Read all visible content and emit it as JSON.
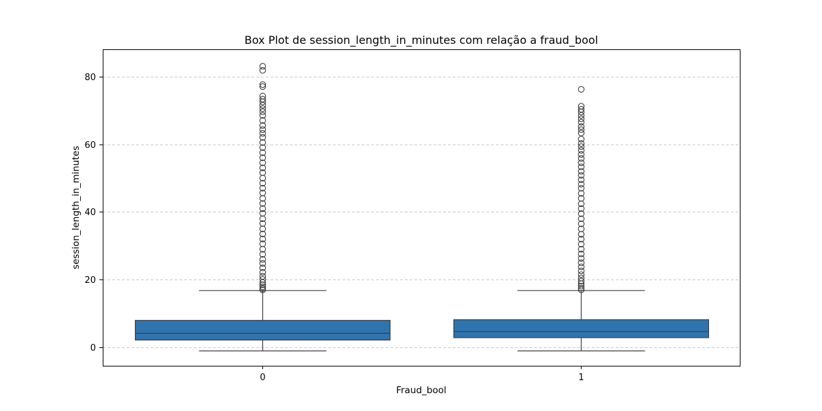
{
  "chart_data": {
    "type": "box",
    "title": "Box Plot de session_length_in_minutes com relação a fraud_bool",
    "xlabel": "Fraud_bool",
    "ylabel": "session_length_in_minutes",
    "categories": [
      "0",
      "1"
    ],
    "ylim": [
      -5.4,
      88
    ],
    "yticks": [
      0,
      20,
      40,
      60,
      80
    ],
    "grid": "y-dashed",
    "colors": {
      "box_fill": "#2e75b0",
      "box_edge": "#3d3d3d",
      "grid": "#b0b8c4",
      "frame": "#000000"
    },
    "boxes": [
      {
        "category": "0",
        "whisker_low": -1,
        "q1": 2.2,
        "median": 4.2,
        "q3": 8.0,
        "whisker_high": 16.8,
        "outliers": [
          17.0,
          17.4,
          17.9,
          18.5,
          19.2,
          20.1,
          21.0,
          22.2,
          23.5,
          24.8,
          26.0,
          27.5,
          29.0,
          30.6,
          32.0,
          33.5,
          35.0,
          36.6,
          38.0,
          39.6,
          41.0,
          42.5,
          44.0,
          45.6,
          47.0,
          48.5,
          50.0,
          51.6,
          53.0,
          54.5,
          56.0,
          57.5,
          59.0,
          60.5,
          62.0,
          63.2,
          64.3,
          65.5,
          67.0,
          68.5,
          69.6,
          70.5,
          71.5,
          72.5,
          73.3,
          74.2,
          77.0,
          77.6,
          81.8,
          83.0
        ]
      },
      {
        "category": "1",
        "whisker_low": -1,
        "q1": 2.9,
        "median": 4.7,
        "q3": 8.2,
        "whisker_high": 16.8,
        "outliers": [
          17.0,
          17.5,
          18.1,
          18.8,
          19.6,
          20.5,
          21.5,
          22.6,
          23.8,
          25.0,
          26.3,
          27.6,
          29.0,
          30.5,
          32.0,
          33.4,
          35.0,
          36.5,
          38.0,
          39.5,
          41.0,
          42.4,
          44.0,
          45.5,
          47.0,
          48.2,
          49.5,
          50.8,
          52.0,
          53.3,
          54.5,
          55.8,
          57.0,
          58.2,
          59.3,
          60.2,
          61.5,
          63.3,
          64.3,
          65.2,
          66.5,
          67.5,
          68.5,
          69.5,
          70.3,
          71.2,
          76.2
        ]
      }
    ]
  }
}
